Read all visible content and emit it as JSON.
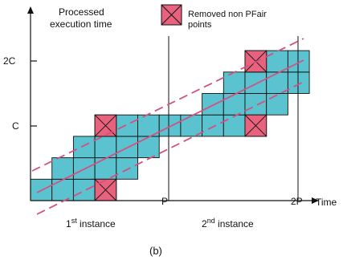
{
  "ylabel_lines": [
    "Processed",
    "execution time"
  ],
  "xlabel": "Time",
  "legend_lines": [
    "Removed non PFair",
    "points"
  ],
  "y_ticks": [
    "2C",
    "C"
  ],
  "x_ticks": [
    "P",
    "2P"
  ],
  "instances": [
    {
      "num": "1",
      "sup": "st",
      "text": " instance"
    },
    {
      "num": "2",
      "sup": "nd",
      "text": " instance"
    }
  ],
  "caption": "(b)",
  "colors": {
    "cell": "#5bc2cf",
    "removed": "#e8627e",
    "pfair_lines": "#d4517f",
    "axes": "#111111"
  },
  "diagram": {
    "cell_columns": 13,
    "cell_rows": 7,
    "staircase": [
      {
        "column": 0,
        "rows": [
          0
        ]
      },
      {
        "column": 1,
        "rows": [
          0,
          1
        ]
      },
      {
        "column": 2,
        "rows": [
          0,
          1,
          2
        ]
      },
      {
        "column": 3,
        "rows": [
          0,
          1,
          2,
          3
        ]
      },
      {
        "column": 4,
        "rows": [
          1,
          2,
          3
        ]
      },
      {
        "column": 5,
        "rows": [
          2,
          3
        ]
      },
      {
        "column": 6,
        "rows": [
          3
        ]
      },
      {
        "column": 7,
        "rows": [
          3
        ]
      },
      {
        "column": 8,
        "rows": [
          3,
          4
        ]
      },
      {
        "column": 9,
        "rows": [
          3,
          4,
          5
        ]
      },
      {
        "column": 10,
        "rows": [
          3,
          4,
          5,
          6
        ]
      },
      {
        "column": 11,
        "rows": [
          4,
          5,
          6
        ]
      },
      {
        "column": 12,
        "rows": [
          5,
          6
        ]
      }
    ],
    "removed_cells": [
      {
        "column": 3,
        "row": -1
      },
      {
        "column": 3,
        "row": 3
      },
      {
        "column": 10,
        "row": 3
      },
      {
        "column": 10,
        "row": 6
      }
    ]
  }
}
